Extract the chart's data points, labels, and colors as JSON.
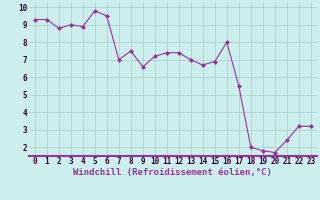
{
  "x": [
    0,
    1,
    2,
    3,
    4,
    5,
    6,
    7,
    8,
    9,
    10,
    11,
    12,
    13,
    14,
    15,
    16,
    17,
    18,
    19,
    20,
    21,
    22,
    23
  ],
  "y": [
    9.3,
    9.3,
    8.8,
    9.0,
    8.9,
    9.8,
    9.5,
    7.0,
    7.5,
    6.6,
    7.2,
    7.4,
    7.4,
    7.0,
    6.7,
    6.9,
    8.0,
    5.5,
    2.0,
    1.8,
    1.7,
    2.4,
    3.2,
    3.2
  ],
  "line_color": "#993399",
  "marker": "D",
  "markersize": 2.0,
  "linewidth": 0.8,
  "xlabel": "Windchill (Refroidissement éolien,°C)",
  "xlabel_fontsize": 6.5,
  "ylabel_ticks": [
    2,
    3,
    4,
    5,
    6,
    7,
    8,
    9,
    10
  ],
  "xtick_labels": [
    "0",
    "1",
    "2",
    "3",
    "4",
    "5",
    "6",
    "7",
    "8",
    "9",
    "10",
    "11",
    "12",
    "13",
    "14",
    "15",
    "16",
    "17",
    "18",
    "19",
    "20",
    "21",
    "22",
    "23"
  ],
  "xlim": [
    -0.5,
    23.5
  ],
  "ylim": [
    1.5,
    10.3
  ],
  "bg_color": "#cceeed",
  "grid_color": "#aacccc",
  "axis_bar_color": "#993399",
  "tick_fontsize": 5.5
}
